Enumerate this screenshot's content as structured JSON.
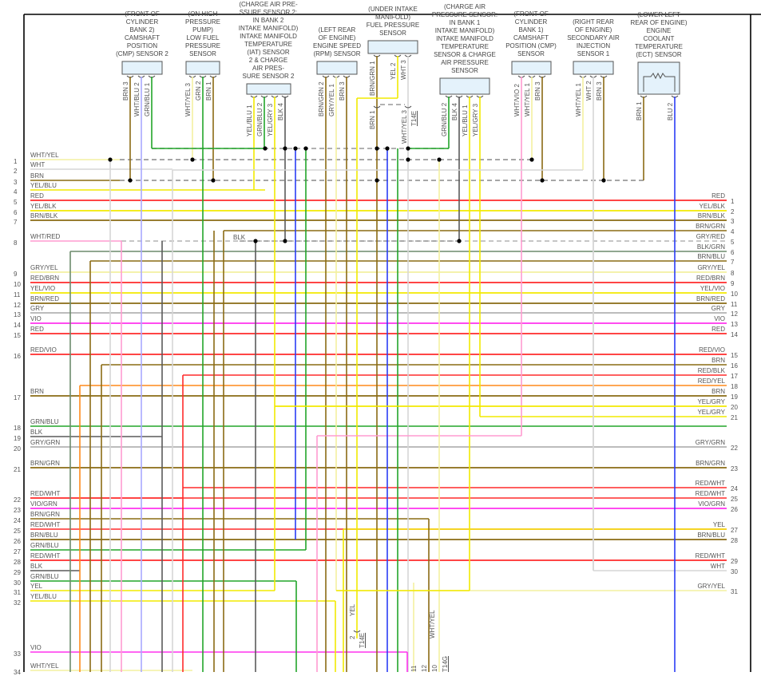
{
  "colors": {
    "RED": "#ff2b2b",
    "YEL": "#f2ea00",
    "BRN": "#8a6b14",
    "GRN": "#22a52a",
    "BLU": "#2a3cf5",
    "WHT": "#d6d6d6",
    "GRY": "#b3b3b3",
    "VIO": "#ff33ee",
    "BLK": "#5a5a5a",
    "ORN": "#ff8a1a",
    "LBLU": "#a9a9ff",
    "PNK": "#ff9bd0",
    "LYEL": "#f3f0a0",
    "DGRN": "#6c8a6c",
    "box": "#e4f2fb"
  },
  "sensors": [
    {
      "title": [
        "(FRONT OF",
        "CYLINDER",
        "BANK 2)",
        "CAMSHAFT",
        "POSITION",
        "(CMP) SENSOR 2"
      ],
      "pins": [
        "BRN 3",
        "WHT/BLU 2",
        "GRN/BLU 1"
      ]
    },
    {
      "title": [
        "(ON HIGH",
        "PRESSURE",
        "PUMP)",
        "LOW FUEL",
        "PRESSURE",
        "SENSOR"
      ],
      "pins": [
        "WHT/YEL 3",
        "GRN 2",
        "BRN 1"
      ]
    },
    {
      "title": [
        "(CHARGE AIR PRE-",
        "SSURE SENSOR 2:",
        "IN BANK 2",
        "INTAKE MANIFOLD)",
        "INTAKE MANIFOLD",
        "TEMPERATURE",
        "(IAT) SENSOR",
        "2 & CHARGE",
        "AIR PRES-",
        "SURE SENSOR 2"
      ],
      "pins": [
        "YEL/BLU 1",
        "GRN/BLU 2",
        "YEL/GRY 3",
        "BLK 4"
      ]
    },
    {
      "title": [
        "(LEFT REAR",
        "OF ENGINE)",
        "ENGINE SPEED",
        "(RPM) SENSOR"
      ],
      "pins": [
        "BRN/GRN 2",
        "GRY/YEL 1",
        "BRN 3"
      ]
    },
    {
      "title": [
        "(UNDER INTAKE",
        "MANIFOLD)",
        "FUEL PRESSURE",
        "SENSOR"
      ],
      "pins": [
        "BRN/GRN 1",
        "YEL 2",
        "WHT 3"
      ]
    },
    {
      "title": [
        "(CHARGE AIR",
        "PRESSURE SENSOR:",
        "IN BANK 1",
        "INTAKE MANIFOLD)",
        "INTAKE MANIFOLD",
        "TEMPERATURE",
        "SENSOR & CHARGE",
        "AIR PRESSURE",
        "SENSOR"
      ],
      "pins": [
        "GRN/BLU 2",
        "BLK 4",
        "YEL/BLU 1",
        "YEL/GRY 3"
      ]
    },
    {
      "title": [
        "(FRONT OF",
        "CYLINDER",
        "BANK 1)",
        "CAMSHAFT",
        "POSITION (CMP)",
        "SENSOR"
      ],
      "pins": [
        "WHT/VIO 2",
        "WHT/YEL 1",
        "BRN 3"
      ]
    },
    {
      "title": [
        "(RIGHT REAR",
        "OF ENGINE)",
        "SECONDARY AIR",
        "INJECTION",
        "SENSOR 1"
      ],
      "pins": [
        "WHT/YEL 1",
        "WHT 2",
        "BRN 3"
      ]
    },
    {
      "title": [
        "(LOWER LEFT",
        "REAR OF ENGINE)",
        "ENGINE",
        "COOLANT",
        "TEMPERATURE",
        "(ECT) SENSOR"
      ],
      "pins": [
        "BRN 1",
        "BLU 2"
      ]
    }
  ],
  "inline_connectors": {
    "t14e_top": {
      "name": "T14E",
      "pins": [
        "BRN 1",
        "WHT/YEL 3"
      ]
    },
    "t14e_bottom": {
      "name": "T14E",
      "pin": "2",
      "wire": "YEL"
    },
    "t14g": {
      "name": "T14G",
      "pins": [
        "11",
        "12",
        "10"
      ],
      "wire": "WHT/YEL"
    }
  },
  "splice_label": "BLK",
  "left_bus": [
    {
      "n": "1",
      "label": "WHT/YEL"
    },
    {
      "n": "2",
      "label": "WHT"
    },
    {
      "n": "3",
      "label": "BRN"
    },
    {
      "n": "4",
      "label": "YEL/BLU"
    },
    {
      "n": "5",
      "label": "RED"
    },
    {
      "n": "6",
      "label": "YEL/BLK"
    },
    {
      "n": "7",
      "label": "BRN/BLK"
    },
    {
      "n": "8",
      "label": "WHT/RED"
    },
    {
      "n": "9",
      "label": "GRY/YEL"
    },
    {
      "n": "10",
      "label": "RED/BRN"
    },
    {
      "n": "11",
      "label": "YEL/VIO"
    },
    {
      "n": "12",
      "label": "BRN/RED"
    },
    {
      "n": "13",
      "label": "GRY"
    },
    {
      "n": "14",
      "label": "VIO"
    },
    {
      "n": "15",
      "label": "RED"
    },
    {
      "n": "16",
      "label": "RED/VIO"
    },
    {
      "n": "17",
      "label": "BRN"
    },
    {
      "n": "18",
      "label": "GRN/BLU"
    },
    {
      "n": "19",
      "label": "BLK"
    },
    {
      "n": "20",
      "label": "GRY/GRN"
    },
    {
      "n": "21",
      "label": "BRN/GRN"
    },
    {
      "n": "22",
      "label": "RED/WHT"
    },
    {
      "n": "23",
      "label": "VIO/GRN"
    },
    {
      "n": "24",
      "label": "BRN/GRN"
    },
    {
      "n": "25",
      "label": "RED/WHT"
    },
    {
      "n": "26",
      "label": "BRN/BLU"
    },
    {
      "n": "27",
      "label": "GRN/BLU"
    },
    {
      "n": "28",
      "label": "RED/WHT"
    },
    {
      "n": "29",
      "label": "BLK"
    },
    {
      "n": "30",
      "label": "GRN/BLU"
    },
    {
      "n": "31",
      "label": "YEL"
    },
    {
      "n": "32",
      "label": "YEL/BLU"
    },
    {
      "n": "33",
      "label": "VIO"
    },
    {
      "n": "34",
      "label": "WHT/YEL"
    }
  ],
  "right_bus": [
    {
      "n": "1",
      "label": "RED"
    },
    {
      "n": "2",
      "label": "YEL/BLK"
    },
    {
      "n": "3",
      "label": "BRN/BLK"
    },
    {
      "n": "4",
      "label": "BRN/GRN"
    },
    {
      "n": "5",
      "label": "GRY/RED"
    },
    {
      "n": "6",
      "label": "BLK/GRN"
    },
    {
      "n": "7",
      "label": "BRN/BLU"
    },
    {
      "n": "8",
      "label": "GRY/YEL"
    },
    {
      "n": "9",
      "label": "RED/BRN"
    },
    {
      "n": "10",
      "label": "YEL/VIO"
    },
    {
      "n": "11",
      "label": "BRN/RED"
    },
    {
      "n": "12",
      "label": "GRY"
    },
    {
      "n": "13",
      "label": "VIO"
    },
    {
      "n": "14",
      "label": "RED"
    },
    {
      "n": "15",
      "label": "RED/VIO"
    },
    {
      "n": "16",
      "label": "BRN"
    },
    {
      "n": "17",
      "label": "RED/BLK"
    },
    {
      "n": "18",
      "label": "RED/YEL"
    },
    {
      "n": "19",
      "label": "BRN"
    },
    {
      "n": "20",
      "label": "YEL/GRY"
    },
    {
      "n": "21",
      "label": "YEL/GRY"
    },
    {
      "n": "22",
      "label": "GRY/GRN"
    },
    {
      "n": "23",
      "label": "BRN/GRN"
    },
    {
      "n": "24",
      "label": "RED/WHT"
    },
    {
      "n": "25",
      "label": "RED/WHT"
    },
    {
      "n": "26",
      "label": "VIO/GRN"
    },
    {
      "n": "27",
      "label": "YEL"
    },
    {
      "n": "28",
      "label": "BRN/BLU"
    },
    {
      "n": "29",
      "label": "RED/WHT"
    },
    {
      "n": "30",
      "label": "WHT"
    },
    {
      "n": "31",
      "label": "GRY/YEL"
    }
  ]
}
